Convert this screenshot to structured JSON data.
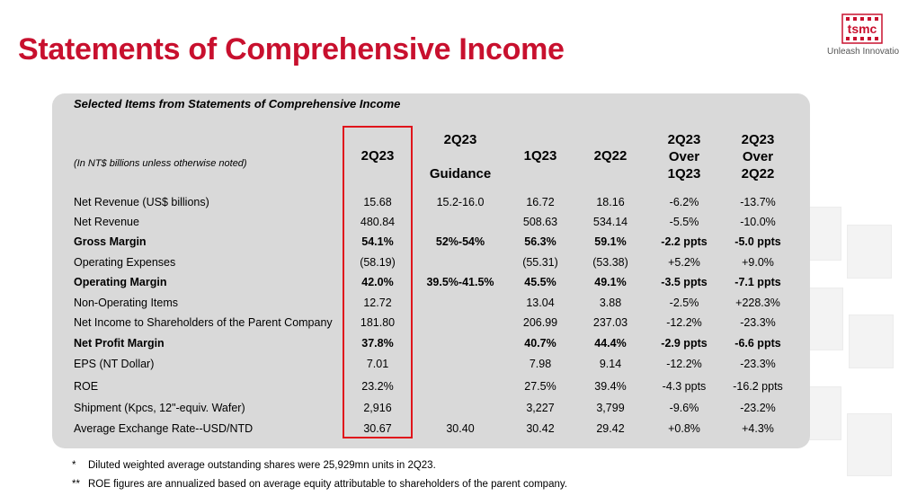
{
  "title": "Statements of Comprehensive Income",
  "brand": {
    "logo_text": "tsmc",
    "tagline": "Unleash Innovation",
    "accent": "#c8102e",
    "highlight_border": "#e0151c"
  },
  "panel": {
    "title": "Selected Items from Statements of Comprehensive Income",
    "unit_note": "(In NT$ billions unless otherwise noted)",
    "columns": [
      "2Q23",
      "2Q23 Guidance",
      "1Q23",
      "2Q22",
      "2Q23 Over 1Q23",
      "2Q23 Over 2Q22"
    ],
    "rows": [
      {
        "label": "Net Revenue (US$ billions)",
        "bold": false,
        "v": [
          "15.68",
          "15.2-16.0",
          "16.72",
          "18.16",
          "-6.2%",
          "-13.7%"
        ]
      },
      {
        "label": "Net Revenue",
        "bold": false,
        "v": [
          "480.84",
          "",
          "508.63",
          "534.14",
          "-5.5%",
          "-10.0%"
        ]
      },
      {
        "label": "Gross Margin",
        "bold": true,
        "v": [
          "54.1%",
          "52%-54%",
          "56.3%",
          "59.1%",
          "-2.2 ppts",
          "-5.0 ppts"
        ]
      },
      {
        "label": "Operating Expenses",
        "bold": false,
        "v": [
          "(58.19)",
          "",
          "(55.31)",
          "(53.38)",
          "+5.2%",
          "+9.0%"
        ]
      },
      {
        "label": "Operating Margin",
        "bold": true,
        "v": [
          "42.0%",
          "39.5%-41.5%",
          "45.5%",
          "49.1%",
          "-3.5 ppts",
          "-7.1 ppts"
        ]
      },
      {
        "label": "Non-Operating Items",
        "bold": false,
        "v": [
          "12.72",
          "",
          "13.04",
          "3.88",
          "-2.5%",
          "+228.3%"
        ]
      },
      {
        "label": "Net Income to Shareholders of the Parent Company",
        "bold": false,
        "v": [
          "181.80",
          "",
          "206.99",
          "237.03",
          "-12.2%",
          "-23.3%"
        ]
      },
      {
        "label": "Net Profit Margin",
        "bold": true,
        "v": [
          "37.8%",
          "",
          "40.7%",
          "44.4%",
          "-2.9 ppts",
          "-6.6 ppts"
        ]
      },
      {
        "label": "EPS (NT Dollar)",
        "bold": false,
        "v": [
          "7.01",
          "",
          "7.98",
          "9.14",
          "-12.2%",
          "-23.3%"
        ]
      },
      {
        "label": "ROE",
        "bold": false,
        "v": [
          "23.2%",
          "",
          "27.5%",
          "39.4%",
          "-4.3 ppts",
          "-16.2 ppts"
        ]
      },
      {
        "label": "Shipment (Kpcs, 12\"-equiv. Wafer)",
        "bold": false,
        "v": [
          "2,916",
          "",
          "3,227",
          "3,799",
          "-9.6%",
          "-23.2%"
        ]
      },
      {
        "label": "Average Exchange Rate--USD/NTD",
        "bold": false,
        "v": [
          "30.67",
          "30.40",
          "30.42",
          "29.42",
          "+0.8%",
          "+4.3%"
        ]
      }
    ]
  },
  "footnotes": [
    {
      "mark": "*",
      "text": "Diluted weighted average outstanding shares were 25,929mn units in 2Q23."
    },
    {
      "mark": "**",
      "text": "ROE figures are annualized based on average equity attributable to shareholders of the parent company."
    }
  ]
}
